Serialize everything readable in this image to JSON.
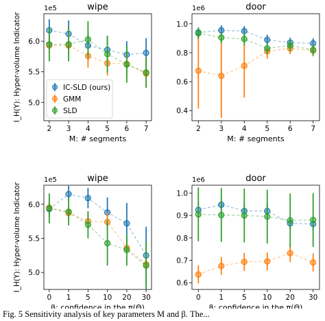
{
  "chart_data": [
    {
      "type": "line",
      "title": "wipe",
      "scale_label": "1e5",
      "xlabel": "M: # segments",
      "ylabel": "I_H(Y): Hyper-volume Indicator",
      "categories": [
        "2",
        "3",
        "4",
        "5",
        "6",
        "7"
      ],
      "yticks": [
        "5.0",
        "5.5",
        "6.0"
      ],
      "ylim": [
        4.7,
        6.45
      ],
      "series": [
        {
          "name": "IC-SLD (ours)",
          "values": [
            6.18,
            6.12,
            5.93,
            5.86,
            5.78,
            5.81
          ],
          "errors": [
            0.18,
            0.22,
            0.24,
            0.23,
            0.22,
            0.24
          ]
        },
        {
          "name": "GMM",
          "values": [
            5.93,
            5.93,
            5.76,
            5.64,
            5.63,
            5.47
          ],
          "errors": [
            0.14,
            0.15,
            0.19,
            0.2,
            0.2,
            0.23
          ]
        },
        {
          "name": "SLD",
          "values": [
            5.95,
            5.95,
            6.03,
            5.79,
            5.62,
            5.49
          ],
          "errors": [
            0.28,
            0.28,
            0.3,
            0.3,
            0.3,
            0.25
          ]
        }
      ],
      "legend": "lower-left"
    },
    {
      "type": "line",
      "title": "door",
      "scale_label": "1e6",
      "xlabel": "M: # segments",
      "categories": [
        "2",
        "3",
        "4",
        "5",
        "6",
        "7"
      ],
      "yticks": [
        "0.4",
        "0.6",
        "0.8",
        "1.0"
      ],
      "ylim": [
        0.33,
        1.07
      ],
      "series": [
        {
          "name": "IC-SLD (ours)",
          "values": [
            0.94,
            0.955,
            0.95,
            0.89,
            0.87,
            0.865
          ],
          "errors": [
            0.035,
            0.035,
            0.035,
            0.035,
            0.035,
            0.035
          ]
        },
        {
          "name": "GMM",
          "values": [
            0.675,
            0.64,
            0.71,
            0.81,
            0.83,
            0.815
          ],
          "errors": [
            0.26,
            0.29,
            0.22,
            0.05,
            0.04,
            0.04
          ]
        },
        {
          "name": "SLD",
          "values": [
            0.935,
            0.905,
            0.895,
            0.83,
            0.85,
            0.82
          ],
          "errors": [
            0.04,
            0.04,
            0.045,
            0.04,
            0.04,
            0.04
          ]
        }
      ]
    },
    {
      "type": "line",
      "title": "wipe",
      "scale_label": "1e5",
      "xlabel": "β: confidence in the π(Θ)",
      "ylabel": "I_H(Y): Hyper-volume Indicator",
      "categories": [
        "0",
        "1",
        "5",
        "10",
        "20",
        "30"
      ],
      "yticks": [
        "5.0",
        "5.5",
        "6.0"
      ],
      "ylim": [
        4.75,
        6.28
      ],
      "series": [
        {
          "name": "IC-SLD (ours)",
          "values": [
            5.93,
            6.15,
            6.09,
            5.88,
            5.72,
            5.25
          ],
          "errors": [
            0.1,
            0.12,
            0.15,
            0.22,
            0.3,
            0.42
          ]
        },
        {
          "name": "GMM",
          "values": [
            5.95,
            5.87,
            5.75,
            5.74,
            5.36,
            5.12
          ],
          "errors": [
            0.14,
            0.1,
            0.13,
            0.14,
            0.1,
            0.09
          ]
        },
        {
          "name": "SLD",
          "values": [
            5.94,
            5.89,
            5.7,
            5.43,
            5.33,
            5.1
          ],
          "errors": [
            0.22,
            0.2,
            0.2,
            0.33,
            0.23,
            0.35
          ]
        }
      ]
    },
    {
      "type": "line",
      "title": "door",
      "scale_label": "1e6",
      "xlabel": "β: confidence in the π(Θ)",
      "categories": [
        "0",
        "1",
        "5",
        "10",
        "20",
        "30"
      ],
      "yticks": [
        "0.6",
        "0.7",
        "0.8",
        "0.9",
        "1.0"
      ],
      "ylim": [
        0.57,
        1.035
      ],
      "series": [
        {
          "name": "IC-SLD (ours)",
          "values": [
            0.925,
            0.948,
            0.92,
            0.92,
            0.865,
            0.862
          ],
          "errors": [
            0.03,
            0.03,
            0.03,
            0.03,
            0.03,
            0.03
          ]
        },
        {
          "name": "GMM",
          "values": [
            0.637,
            0.675,
            0.693,
            0.695,
            0.732,
            0.69
          ],
          "errors": [
            0.04,
            0.04,
            0.04,
            0.04,
            0.04,
            0.04
          ]
        },
        {
          "name": "SLD",
          "values": [
            0.905,
            0.902,
            0.9,
            0.895,
            0.878,
            0.88
          ],
          "errors": [
            0.12,
            0.12,
            0.12,
            0.12,
            0.12,
            0.12
          ]
        }
      ]
    }
  ],
  "colors": {
    "IC-SLD (ours)": "#1f77b4",
    "GMM": "#ff7f0e",
    "SLD": "#2ca02c"
  },
  "caption": "Fig. 5    Sensitivity analysis of key parameters M and β. The..."
}
